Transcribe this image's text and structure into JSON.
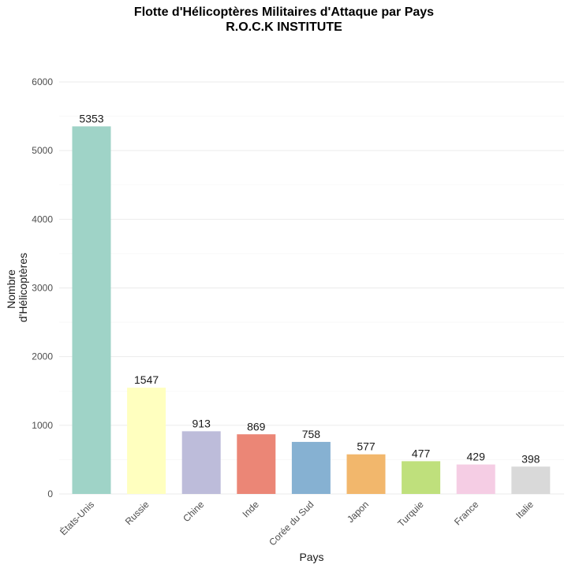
{
  "chart_data": {
    "type": "bar",
    "title": "Flotte d'Hélicoptères Militaires d'Attaque par Pays",
    "subtitle": "R.O.C.K INSTITUTE",
    "xlabel": "Pays",
    "ylabel_lines": [
      "Nombre",
      "d'Hélicoptères"
    ],
    "categories": [
      "États-Unis",
      "Russie",
      "Chine",
      "Inde",
      "Corée du Sud",
      "Japon",
      "Turquie",
      "France",
      "Italie"
    ],
    "values": [
      5353,
      1547,
      913,
      869,
      758,
      577,
      477,
      429,
      398
    ],
    "colors": [
      "#9fd3c7",
      "#ffffbf",
      "#bdbcda",
      "#eb8676",
      "#86b1d2",
      "#f2b76c",
      "#bfe07c",
      "#f5cde4",
      "#d9d9d9"
    ],
    "ylim": [
      0,
      6000
    ],
    "yticks": [
      0,
      1000,
      2000,
      3000,
      4000,
      5000,
      6000
    ],
    "grid": true,
    "legend": "none"
  }
}
